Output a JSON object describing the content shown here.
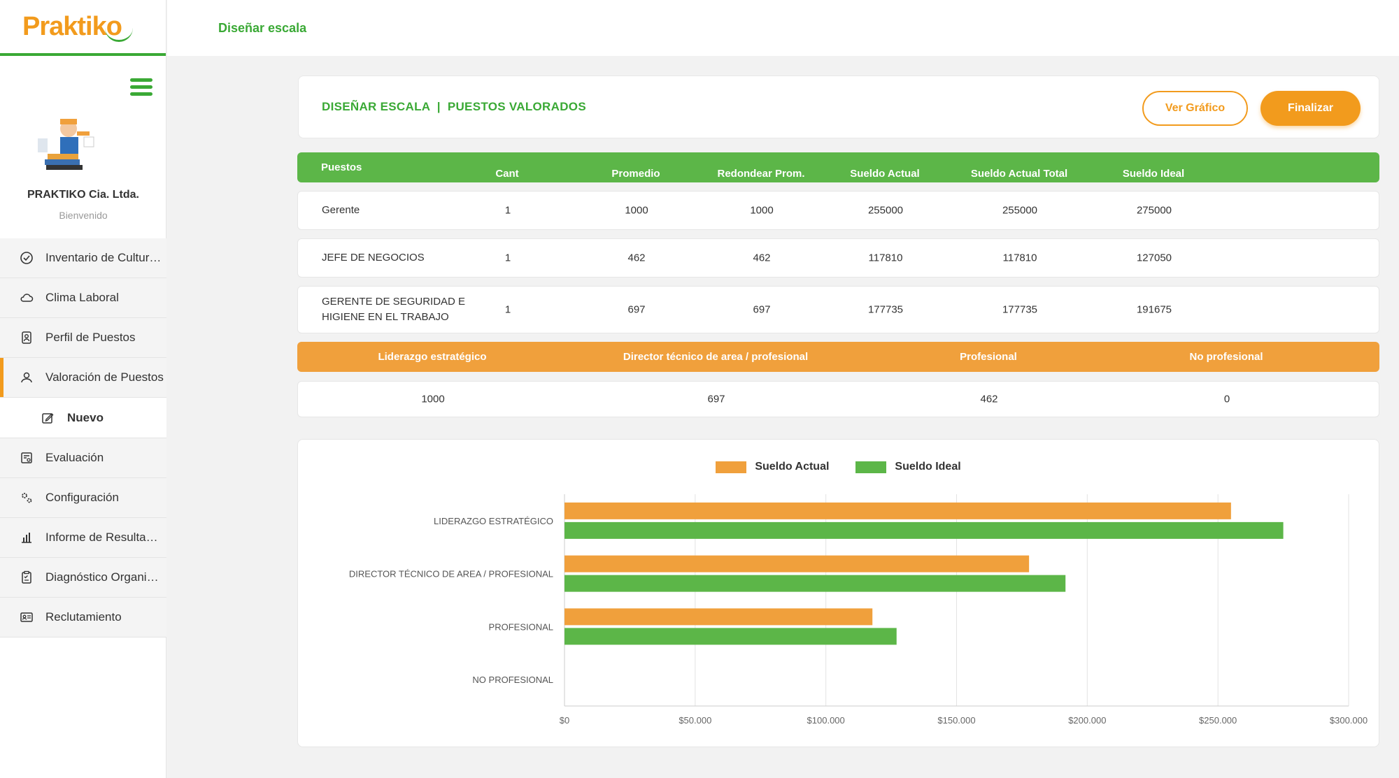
{
  "brand": {
    "logo_text": "Praktiko",
    "accent": "#3aa935",
    "orange": "#f29b1d"
  },
  "topbar": {
    "title": "Diseñar escala"
  },
  "sidebar": {
    "company": "PRAKTIKO Cia. Ltda.",
    "welcome": "Bienvenido",
    "items": [
      {
        "label": "Inventario de Cultura Organizacional",
        "icon": "check-circle-icon"
      },
      {
        "label": "Clima Laboral",
        "icon": "cloud-icon"
      },
      {
        "label": "Perfil de Puestos",
        "icon": "id-badge-icon"
      },
      {
        "label": "Valoración de Puestos",
        "icon": "user-icon",
        "active": true
      },
      {
        "label": "Evaluación",
        "icon": "evaluation-icon"
      },
      {
        "label": "Configuración",
        "icon": "gears-icon"
      },
      {
        "label": "Informe de Resultados",
        "icon": "bar-chart-icon"
      },
      {
        "label": "Diagnóstico Organizacional",
        "icon": "clipboard-icon"
      },
      {
        "label": "Reclutamiento",
        "icon": "id-card-icon"
      }
    ],
    "sub_item": {
      "label": "Nuevo",
      "icon": "edit-icon"
    }
  },
  "header": {
    "title": "DISEÑAR ESCALA  |  PUESTOS VALORADOS",
    "ver_grafico": "Ver Gráfico",
    "finalizar": "Finalizar"
  },
  "table": {
    "columns": [
      "Puestos",
      "Cant",
      "Promedio",
      "Redondear Prom.",
      "Sueldo Actual",
      "Sueldo Actual Total",
      "Sueldo Ideal"
    ],
    "rows": [
      [
        "Gerente",
        "1",
        "1000",
        "1000",
        "255000",
        "255000",
        "275000"
      ],
      [
        "JEFE DE NEGOCIOS",
        "1",
        "462",
        "462",
        "117810",
        "117810",
        "127050"
      ],
      [
        "GERENTE DE SEGURIDAD E HIGIENE EN EL TRABAJO",
        "1",
        "697",
        "697",
        "177735",
        "177735",
        "191675"
      ]
    ]
  },
  "levels": {
    "columns": [
      "Liderazgo estratégico",
      "Director técnico de area / profesional",
      "Profesional",
      "No profesional"
    ],
    "values": [
      "1000",
      "697",
      "462",
      "0"
    ]
  },
  "chart_data": {
    "type": "bar",
    "orientation": "horizontal",
    "categories": [
      "LIDERAZGO ESTRATÉGICO",
      "DIRECTOR TÉCNICO DE AREA / PROFESIONAL",
      "PROFESIONAL",
      "NO PROFESIONAL"
    ],
    "series": [
      {
        "name": "Sueldo Actual",
        "color": "#f0a03c",
        "values": [
          255000,
          177735,
          117810,
          0
        ]
      },
      {
        "name": "Sueldo Ideal",
        "color": "#5cb648",
        "values": [
          275000,
          191675,
          127050,
          0
        ]
      }
    ],
    "xlim": [
      0,
      300000
    ],
    "xticks": [
      "$0",
      "$50.000",
      "$100.000",
      "$150.000",
      "$200.000",
      "$250.000",
      "$300.000"
    ],
    "legend": "top-center",
    "grid": true
  }
}
